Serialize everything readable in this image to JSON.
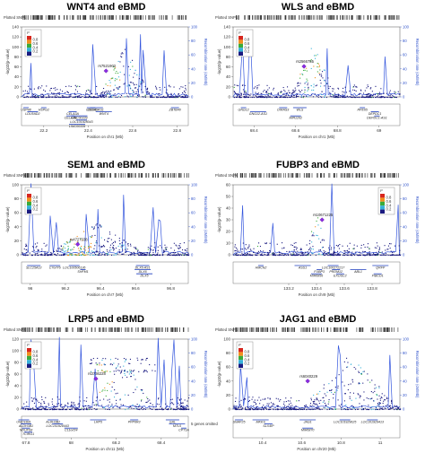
{
  "figure": {
    "panels": [
      {
        "id": "wnt4",
        "title": "WNT4 and eBMD"
      },
      {
        "id": "wls",
        "title": "WLS and eBMD"
      },
      {
        "id": "sem1",
        "title": "SEM1 and eBMD"
      },
      {
        "id": "fubp3",
        "title": "FUBP3 and eBMD"
      },
      {
        "id": "lrp5",
        "title": "LRP5 and eBMD"
      },
      {
        "id": "jag1",
        "title": "JAG1 and eBMD"
      }
    ]
  },
  "chart_data": [
    {
      "type": "scatter",
      "title": "WNT4 and eBMD",
      "plotted_snps_label": "Plotted SNPs",
      "ylabel": "-log10(p-value)",
      "ylabel2": "Recombination rate (cM/Mb)",
      "xlabel": "Position on chr1 (Mb)",
      "ylim": [
        0,
        140
      ],
      "y_ticks": [
        0,
        20,
        40,
        60,
        80,
        100,
        120,
        140
      ],
      "y2lim": [
        0,
        100
      ],
      "y2_ticks": [
        0,
        20,
        40,
        60,
        80,
        100
      ],
      "xlim": [
        22.1,
        22.85
      ],
      "x_ticks": [
        22.2,
        22.4,
        22.6,
        22.8
      ],
      "r2_legend": {
        "title": "r²",
        "levels": [
          "0.8",
          "0.6",
          "0.4",
          "0.2"
        ]
      },
      "lead_snp": {
        "label": "rs7521902",
        "x": 22.48,
        "y": 52
      },
      "genes": [
        {
          "name": "CDC42",
          "x": 22.42,
          "row": 0
        },
        {
          "name": "WNT4",
          "x": 22.47,
          "row": 1
        },
        {
          "name": "ZBTB40",
          "x": 22.79,
          "row": 0
        },
        {
          "name": "HSPG2",
          "x": 22.2,
          "row": 0
        },
        {
          "name": "CELA3A",
          "x": 22.33,
          "row": 1
        },
        {
          "name": "LINC00339",
          "x": 22.36,
          "row": 2
        },
        {
          "name": "CDC42-AS1",
          "x": 22.43,
          "row": 0
        },
        {
          "name": "CELA3B",
          "x": 22.32,
          "row": 2
        },
        {
          "name": "USP48",
          "x": 22.12,
          "row": 0
        },
        {
          "name": "LDLRAD2",
          "x": 22.15,
          "row": 1
        },
        {
          "name": "LOC101928043",
          "x": 22.37,
          "row": 3
        },
        {
          "name": "LINC00339",
          "x": 22.35,
          "row": 4
        }
      ]
    },
    {
      "type": "scatter",
      "title": "WLS and eBMD",
      "plotted_snps_label": "Plotted SNPs",
      "ylabel": "-log10(p-value)",
      "ylabel2": "Recombination rate (cM/Mb)",
      "xlabel": "Position on chr1 (Mb)",
      "ylim": [
        0,
        140
      ],
      "y_ticks": [
        0,
        20,
        40,
        60,
        80,
        100,
        120,
        140
      ],
      "y2lim": [
        0,
        100
      ],
      "y2_ticks": [
        0,
        20,
        40,
        60,
        80,
        100
      ],
      "xlim": [
        68.3,
        69.1
      ],
      "x_ticks": [
        68.4,
        68.6,
        68.8,
        69.0
      ],
      "r2_legend": {
        "title": "r²",
        "levels": [
          "0.8",
          "0.6",
          "0.4",
          "0.2"
        ]
      },
      "lead_snp": {
        "label": "rs2566755",
        "x": 68.64,
        "y": 61
      },
      "genes": [
        {
          "name": "GNG12",
          "x": 68.35,
          "row": 0
        },
        {
          "name": "GNG12-AS1",
          "x": 68.42,
          "row": 1
        },
        {
          "name": "DIRAS3",
          "x": 68.54,
          "row": 0
        },
        {
          "name": "WLS",
          "x": 68.62,
          "row": 0
        },
        {
          "name": "MIR1262",
          "x": 68.6,
          "row": 2
        },
        {
          "name": "RPE65",
          "x": 68.92,
          "row": 0
        },
        {
          "name": "DEPDC1",
          "x": 68.98,
          "row": 1
        },
        {
          "name": "DEPDC1-AS1",
          "x": 68.99,
          "row": 2
        }
      ]
    },
    {
      "type": "scatter",
      "title": "SEM1 and eBMD",
      "plotted_snps_label": "Plotted SNPs",
      "ylabel": "-log10(p-value)",
      "ylabel2": "Recombination rate (cM/Mb)",
      "xlabel": "Position on chr7 (Mb)",
      "ylim": [
        0,
        100
      ],
      "y_ticks": [
        0,
        20,
        40,
        60,
        80,
        100
      ],
      "y2lim": [
        0,
        100
      ],
      "y2_ticks": [
        0,
        20,
        40,
        60,
        80,
        100
      ],
      "xlim": [
        95.95,
        96.9
      ],
      "x_ticks": [
        96,
        96.2,
        96.4,
        96.6,
        96.8
      ],
      "r2_legend": {
        "title": "r²",
        "levels": [
          "0.8",
          "0.6",
          "0.4",
          "0.2"
        ]
      },
      "lead_snp": {
        "label": "rs4727338",
        "x": 96.27,
        "y": 15
      },
      "genes": [
        {
          "name": "SLC25A13",
          "x": 96.02,
          "row": 0
        },
        {
          "name": "C7orf76",
          "x": 96.14,
          "row": 0
        },
        {
          "name": "LOC100506136",
          "x": 96.25,
          "row": 0
        },
        {
          "name": "SHFM1",
          "x": 96.3,
          "row": 1
        },
        {
          "name": "DLX6-AS1",
          "x": 96.64,
          "row": 0
        },
        {
          "name": "DLX6",
          "x": 96.64,
          "row": 1
        },
        {
          "name": "DLX5",
          "x": 96.65,
          "row": 2
        }
      ]
    },
    {
      "type": "scatter",
      "title": "FUBP3 and eBMD",
      "plotted_snps_label": "Plotted SNPs",
      "ylabel": "-log10(p-value)",
      "ylabel2": "Recombination rate (cM/Mb)",
      "xlabel": "Position on chr9 (Mb)",
      "ylim": [
        0,
        60
      ],
      "y_ticks": [
        0,
        10,
        20,
        30,
        40,
        50,
        60
      ],
      "y2lim": [
        0,
        100
      ],
      "y2_ticks": [
        0,
        20,
        40,
        60,
        80,
        100
      ],
      "xlim": [
        132.8,
        134.0
      ],
      "x_ticks": [
        133.2,
        133.4,
        133.6,
        133.8
      ],
      "r2_legend": {
        "title": "r²",
        "levels": [
          "0.8",
          "0.6",
          "0.4",
          "0.2"
        ]
      },
      "lead_snp": {
        "label": "rs10671225",
        "x": 133.44,
        "y": 30
      },
      "genes": [
        {
          "name": "HMCN2",
          "x": 133.0,
          "row": 0
        },
        {
          "name": "ASS1",
          "x": 133.3,
          "row": 0
        },
        {
          "name": "FUBP3",
          "x": 133.42,
          "row": 1
        },
        {
          "name": "LOC100272217",
          "x": 133.52,
          "row": 0
        },
        {
          "name": "MIR6856",
          "x": 133.4,
          "row": 2
        },
        {
          "name": "PRDM12",
          "x": 133.54,
          "row": 1
        },
        {
          "name": "EXOSC2",
          "x": 133.57,
          "row": 2
        },
        {
          "name": "ABL1",
          "x": 133.7,
          "row": 1
        },
        {
          "name": "QRFP",
          "x": 133.86,
          "row": 0
        },
        {
          "name": "FIBCD1",
          "x": 133.84,
          "row": 2
        }
      ]
    },
    {
      "type": "scatter",
      "title": "LRP5 and eBMD",
      "plotted_snps_label": "Plotted SNPs",
      "ylabel": "-log10(p-value)",
      "ylabel2": "Recombination rate (cM/Mb)",
      "xlabel": "Position on chr11 (Mb)",
      "ylim": [
        0,
        120
      ],
      "y_ticks": [
        0,
        20,
        40,
        60,
        80,
        100,
        120
      ],
      "y2lim": [
        0,
        100
      ],
      "y2_ticks": [
        0,
        20,
        40,
        60,
        80,
        100
      ],
      "xlim": [
        67.78,
        68.52
      ],
      "x_ticks": [
        67.8,
        68,
        68.2,
        68.4
      ],
      "r2_legend": {
        "title": "r²",
        "levels": [
          "0.8",
          "0.6",
          "0.4",
          "0.2"
        ]
      },
      "lead_snp": {
        "label": "rs3736228",
        "x": 68.11,
        "y": 52
      },
      "genes_omitted_note": "5 genes omitted",
      "genes": [
        {
          "name": "UNC93B1",
          "x": 67.79,
          "row": 0
        },
        {
          "name": "ALDH3B1",
          "x": 67.8,
          "row": 1
        },
        {
          "name": "NDUFS8",
          "x": 67.8,
          "row": 2
        },
        {
          "name": "TCIRG1",
          "x": 67.81,
          "row": 3
        },
        {
          "name": "ALDH3B2",
          "x": 67.92,
          "row": 0
        },
        {
          "name": "LOC101928443",
          "x": 67.94,
          "row": 1
        },
        {
          "name": "C11orf24",
          "x": 68.0,
          "row": 2
        },
        {
          "name": "LRP5",
          "x": 68.12,
          "row": 0
        },
        {
          "name": "PPP6R3",
          "x": 68.28,
          "row": 0
        },
        {
          "name": "GAL",
          "x": 68.45,
          "row": 0
        },
        {
          "name": "MTL5",
          "x": 68.47,
          "row": 1
        },
        {
          "name": "CPT1A",
          "x": 68.5,
          "row": 2
        }
      ]
    },
    {
      "type": "scatter",
      "title": "JAG1 and eBMD",
      "plotted_snps_label": "Plotted SNPs",
      "ylabel": "-log10(p-value)",
      "ylabel2": "Recombination rate (cM/Mb)",
      "xlabel": "Position on chr20 (Mb)",
      "ylim": [
        0,
        100
      ],
      "y_ticks": [
        0,
        20,
        40,
        60,
        80,
        100
      ],
      "y2lim": [
        0,
        100
      ],
      "y2_ticks": [
        0,
        20,
        40,
        60,
        80,
        100
      ],
      "xlim": [
        10.25,
        11.1
      ],
      "x_ticks": [
        10.4,
        10.6,
        10.8,
        11
      ],
      "r2_legend": {
        "title": "r²",
        "levels": [
          "0.8",
          "0.6",
          "0.4",
          "0.2"
        ]
      },
      "lead_snp": {
        "label": "rs6040229",
        "x": 10.63,
        "y": 40
      },
      "genes": [
        {
          "name": "SNAP25",
          "x": 10.28,
          "row": 0
        },
        {
          "name": "MKKS",
          "x": 10.39,
          "row": 0
        },
        {
          "name": "JAG1",
          "x": 10.63,
          "row": 0
        },
        {
          "name": "SLX4IP",
          "x": 10.43,
          "row": 1
        },
        {
          "name": "LOC101929413",
          "x": 10.96,
          "row": 0
        },
        {
          "name": "LOC101929625",
          "x": 10.82,
          "row": 0
        },
        {
          "name": "MIR6870",
          "x": 10.63,
          "row": 2
        }
      ]
    }
  ]
}
